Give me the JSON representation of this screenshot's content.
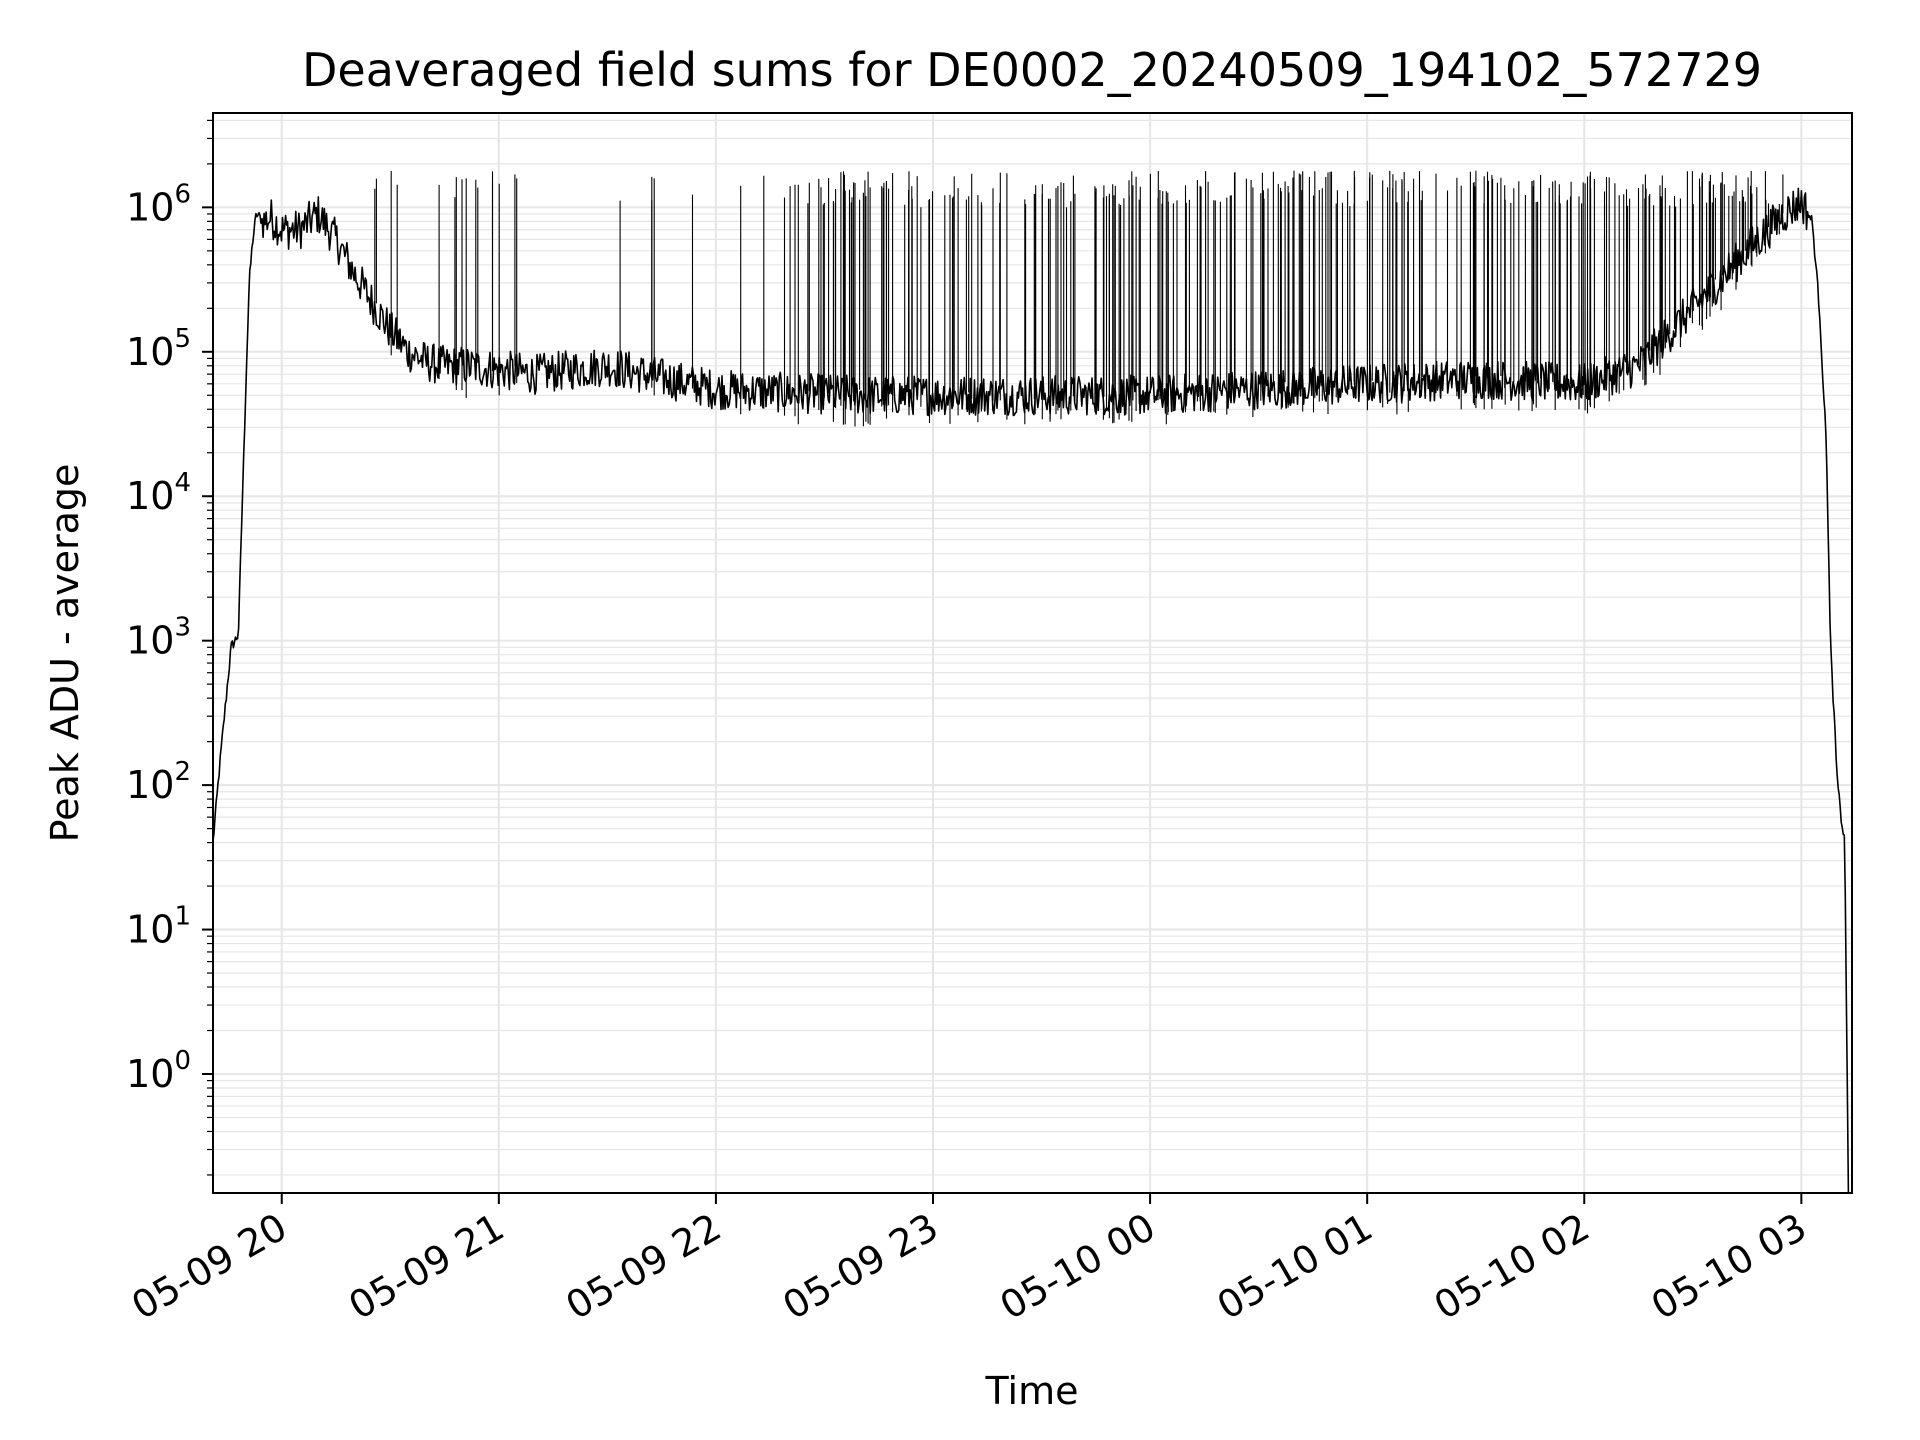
{
  "chart_data": {
    "type": "line",
    "title": "Deaveraged field sums for DE0002_20240509_194102_572729",
    "xlabel": "Time",
    "ylabel": "Peak ADU - average",
    "yscale": "log",
    "ylim": [
      0.15,
      4500000
    ],
    "xlim": [
      "2024-05-09 19:41",
      "2024-05-10 03:14"
    ],
    "grid": true,
    "line_color": "#000000",
    "grid_color": "#e6e6e6",
    "x_ticks": [
      {
        "value": "2024-05-09 20:00",
        "label": "05-09 20"
      },
      {
        "value": "2024-05-09 21:00",
        "label": "05-09 21"
      },
      {
        "value": "2024-05-09 22:00",
        "label": "05-09 22"
      },
      {
        "value": "2024-05-09 23:00",
        "label": "05-09 23"
      },
      {
        "value": "2024-05-10 00:00",
        "label": "05-10 00"
      },
      {
        "value": "2024-05-10 01:00",
        "label": "05-10 01"
      },
      {
        "value": "2024-05-10 02:00",
        "label": "05-10 02"
      },
      {
        "value": "2024-05-10 03:00",
        "label": "05-10 03"
      }
    ],
    "y_ticks": [
      {
        "value": 1,
        "base": "10",
        "exp": "0"
      },
      {
        "value": 10,
        "base": "10",
        "exp": "1"
      },
      {
        "value": 100,
        "base": "10",
        "exp": "2"
      },
      {
        "value": 1000,
        "base": "10",
        "exp": "3"
      },
      {
        "value": 10000,
        "base": "10",
        "exp": "4"
      },
      {
        "value": 100000,
        "base": "10",
        "exp": "5"
      },
      {
        "value": 1000000,
        "base": "10",
        "exp": "6"
      }
    ],
    "series": [
      {
        "x": [
          "2024-05-09 19:41",
          "2024-05-09 19:43",
          "2024-05-09 19:45",
          "2024-05-09 19:46",
          "2024-05-09 19:48",
          "2024-05-09 19:50",
          "2024-05-09 19:51",
          "2024-05-09 19:52",
          "2024-05-09 19:53",
          "2024-05-09 19:55",
          "2024-05-09 19:57",
          "2024-05-09 20:00",
          "2024-05-09 20:05",
          "2024-05-09 20:10",
          "2024-05-09 20:15",
          "2024-05-09 20:20",
          "2024-05-09 20:25",
          "2024-05-09 20:30",
          "2024-05-09 20:35",
          "2024-05-09 20:40",
          "2024-05-09 20:45",
          "2024-05-09 20:50",
          "2024-05-09 21:00",
          "2024-05-09 21:10",
          "2024-05-09 21:20",
          "2024-05-09 21:30",
          "2024-05-09 21:40",
          "2024-05-09 22:00",
          "2024-05-09 22:20",
          "2024-05-09 22:40",
          "2024-05-09 23:00",
          "2024-05-09 23:30",
          "2024-05-10 00:00",
          "2024-05-10 00:30",
          "2024-05-10 01:00",
          "2024-05-10 01:30",
          "2024-05-10 02:00",
          "2024-05-10 02:15",
          "2024-05-10 02:30",
          "2024-05-10 02:45",
          "2024-05-10 02:55",
          "2024-05-10 03:00",
          "2024-05-10 03:03",
          "2024-05-10 03:05",
          "2024-05-10 03:07",
          "2024-05-10 03:08",
          "2024-05-10 03:10",
          "2024-05-10 03:11",
          "2024-05-10 03:12",
          "2024-05-10 03:13"
        ],
        "y": [
          40,
          150,
          500,
          900,
          1100,
          50000,
          300000,
          600000,
          900000,
          800000,
          850000,
          700000,
          700000,
          900000,
          600000,
          350000,
          220000,
          140000,
          100000,
          85000,
          80000,
          80000,
          75000,
          70000,
          75000,
          80000,
          70000,
          55000,
          52000,
          50000,
          50000,
          50000,
          50000,
          55000,
          60000,
          65000,
          60000,
          80000,
          200000,
          500000,
          900000,
          1100000,
          800000,
          200000,
          20000,
          1000,
          100,
          60,
          40,
          0.15
        ]
      }
    ]
  }
}
